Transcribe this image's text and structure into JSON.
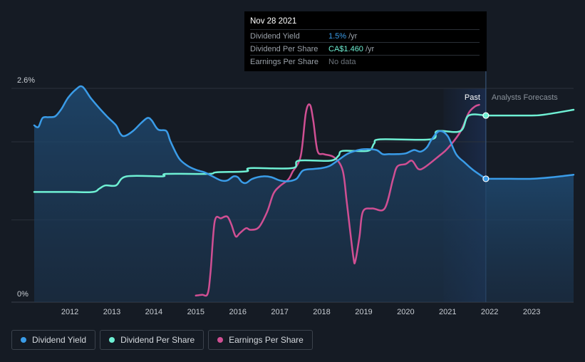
{
  "tooltip": {
    "date": "Nov 28 2021",
    "rows": [
      {
        "name": "Dividend Yield",
        "value": "1.5%",
        "unit": "/yr",
        "color": "#3a9ce8"
      },
      {
        "name": "Dividend Per Share",
        "value": "CA$1.460",
        "unit": "/yr",
        "color": "#6ff0d4"
      },
      {
        "name": "Earnings Per Share",
        "value": "No data",
        "unit": "",
        "color": "#6d747c"
      }
    ]
  },
  "legend": [
    {
      "label": "Dividend Yield",
      "color": "#3a9ce8"
    },
    {
      "label": "Dividend Per Share",
      "color": "#6ff0d4"
    },
    {
      "label": "Earnings Per Share",
      "color": "#d04f93"
    }
  ],
  "chart_data": {
    "type": "line",
    "y_tick_labels": [
      "2.6%",
      "0%"
    ],
    "ylim": [
      0,
      2.6
    ],
    "xlim": [
      2011.15,
      2024.0
    ],
    "x_ticks": [
      2012,
      2013,
      2014,
      2015,
      2016,
      2017,
      2018,
      2019,
      2020,
      2021,
      2022,
      2023
    ],
    "past_label": "Past",
    "forecast_label": "Analysts Forecasts",
    "divider_x": 2021.91,
    "colors": {
      "background": "#151b24",
      "past_region": "#1a2a48",
      "grid": "#2b323b"
    },
    "series": [
      {
        "name": "Dividend Yield",
        "color": "#3a9ce8",
        "fill": true,
        "points": [
          [
            2011.15,
            2.15
          ],
          [
            2011.25,
            2.13
          ],
          [
            2011.35,
            2.24
          ],
          [
            2011.5,
            2.25
          ],
          [
            2011.65,
            2.26
          ],
          [
            2011.8,
            2.35
          ],
          [
            2011.95,
            2.48
          ],
          [
            2012.15,
            2.59
          ],
          [
            2012.3,
            2.62
          ],
          [
            2012.5,
            2.48
          ],
          [
            2012.7,
            2.36
          ],
          [
            2012.9,
            2.25
          ],
          [
            2013.1,
            2.15
          ],
          [
            2013.2,
            2.05
          ],
          [
            2013.3,
            2.02
          ],
          [
            2013.5,
            2.08
          ],
          [
            2013.7,
            2.18
          ],
          [
            2013.85,
            2.24
          ],
          [
            2013.95,
            2.21
          ],
          [
            2014.1,
            2.1
          ],
          [
            2014.3,
            2.08
          ],
          [
            2014.4,
            1.95
          ],
          [
            2014.6,
            1.75
          ],
          [
            2014.8,
            1.66
          ],
          [
            2015.0,
            1.61
          ],
          [
            2015.2,
            1.58
          ],
          [
            2015.4,
            1.53
          ],
          [
            2015.6,
            1.48
          ],
          [
            2015.75,
            1.48
          ],
          [
            2015.9,
            1.53
          ],
          [
            2016.0,
            1.52
          ],
          [
            2016.1,
            1.46
          ],
          [
            2016.2,
            1.45
          ],
          [
            2016.35,
            1.5
          ],
          [
            2016.6,
            1.53
          ],
          [
            2016.8,
            1.52
          ],
          [
            2017.0,
            1.48
          ],
          [
            2017.2,
            1.47
          ],
          [
            2017.4,
            1.5
          ],
          [
            2017.55,
            1.6
          ],
          [
            2017.8,
            1.62
          ],
          [
            2018.0,
            1.63
          ],
          [
            2018.2,
            1.66
          ],
          [
            2018.4,
            1.73
          ],
          [
            2018.6,
            1.8
          ],
          [
            2018.8,
            1.84
          ],
          [
            2019.0,
            1.86
          ],
          [
            2019.3,
            1.85
          ],
          [
            2019.45,
            1.8
          ],
          [
            2019.6,
            1.8
          ],
          [
            2019.8,
            1.8
          ],
          [
            2020.0,
            1.81
          ],
          [
            2020.2,
            1.85
          ],
          [
            2020.35,
            1.83
          ],
          [
            2020.5,
            1.88
          ],
          [
            2020.62,
            1.98
          ],
          [
            2020.8,
            2.08
          ],
          [
            2021.0,
            2.02
          ],
          [
            2021.2,
            1.8
          ],
          [
            2021.4,
            1.7
          ],
          [
            2021.6,
            1.61
          ],
          [
            2021.91,
            1.5
          ]
        ]
      },
      {
        "name": "Dividend Yield Forecast",
        "color": "#3a9ce8",
        "fill": true,
        "points": [
          [
            2021.91,
            1.5
          ],
          [
            2022.5,
            1.5
          ],
          [
            2023.0,
            1.5
          ],
          [
            2023.5,
            1.52
          ],
          [
            2024.0,
            1.55
          ]
        ]
      },
      {
        "name": "Dividend Per Share",
        "color": "#6ff0d4",
        "fill": false,
        "points": [
          [
            2011.15,
            1.34
          ],
          [
            2012.0,
            1.34
          ],
          [
            2012.55,
            1.34
          ],
          [
            2012.7,
            1.38
          ],
          [
            2012.85,
            1.42
          ],
          [
            2013.1,
            1.42
          ],
          [
            2013.35,
            1.53
          ],
          [
            2014.2,
            1.53
          ],
          [
            2014.3,
            1.56
          ],
          [
            2015.3,
            1.56
          ],
          [
            2015.5,
            1.58
          ],
          [
            2016.2,
            1.59
          ],
          [
            2016.3,
            1.63
          ],
          [
            2017.3,
            1.63
          ],
          [
            2017.45,
            1.72
          ],
          [
            2018.2,
            1.72
          ],
          [
            2018.4,
            1.78
          ],
          [
            2018.5,
            1.84
          ],
          [
            2019.1,
            1.84
          ],
          [
            2019.25,
            1.93
          ],
          [
            2019.4,
            1.98
          ],
          [
            2020.6,
            1.98
          ],
          [
            2020.75,
            2.08
          ],
          [
            2021.3,
            2.08
          ],
          [
            2021.5,
            2.27
          ],
          [
            2021.91,
            2.27
          ]
        ]
      },
      {
        "name": "Dividend Per Share Forecast",
        "color": "#6ff0d4",
        "fill": false,
        "points": [
          [
            2021.91,
            2.27
          ],
          [
            2022.5,
            2.27
          ],
          [
            2023.0,
            2.27
          ],
          [
            2023.3,
            2.28
          ],
          [
            2024.0,
            2.34
          ]
        ]
      },
      {
        "name": "Earnings Per Share",
        "color": "#d04f93",
        "fill": false,
        "points": [
          [
            2015.0,
            0.08
          ],
          [
            2015.15,
            0.09
          ],
          [
            2015.28,
            0.1
          ],
          [
            2015.35,
            0.36
          ],
          [
            2015.45,
            0.98
          ],
          [
            2015.6,
            1.02
          ],
          [
            2015.75,
            1.04
          ],
          [
            2015.85,
            0.94
          ],
          [
            2015.95,
            0.8
          ],
          [
            2016.05,
            0.84
          ],
          [
            2016.2,
            0.9
          ],
          [
            2016.3,
            0.88
          ],
          [
            2016.5,
            0.91
          ],
          [
            2016.7,
            1.1
          ],
          [
            2016.85,
            1.32
          ],
          [
            2017.0,
            1.41
          ],
          [
            2017.2,
            1.49
          ],
          [
            2017.3,
            1.58
          ],
          [
            2017.5,
            1.78
          ],
          [
            2017.62,
            2.3
          ],
          [
            2017.72,
            2.4
          ],
          [
            2017.8,
            2.2
          ],
          [
            2017.9,
            1.84
          ],
          [
            2018.05,
            1.8
          ],
          [
            2018.3,
            1.76
          ],
          [
            2018.5,
            1.6
          ],
          [
            2018.6,
            1.2
          ],
          [
            2018.75,
            0.56
          ],
          [
            2018.8,
            0.5
          ],
          [
            2018.9,
            0.8
          ],
          [
            2018.98,
            1.1
          ],
          [
            2019.2,
            1.14
          ],
          [
            2019.5,
            1.14
          ],
          [
            2019.7,
            1.5
          ],
          [
            2019.8,
            1.65
          ],
          [
            2020.0,
            1.68
          ],
          [
            2020.15,
            1.72
          ],
          [
            2020.3,
            1.62
          ],
          [
            2020.45,
            1.64
          ],
          [
            2020.8,
            1.78
          ],
          [
            2021.0,
            1.87
          ],
          [
            2021.3,
            2.07
          ],
          [
            2021.5,
            2.3
          ],
          [
            2021.65,
            2.38
          ],
          [
            2021.75,
            2.4
          ]
        ]
      }
    ],
    "markers": [
      {
        "x": 2021.91,
        "y": 2.27,
        "color": "#6ff0d4"
      },
      {
        "x": 2021.91,
        "y": 1.5,
        "color": "#3a9ce8"
      }
    ]
  }
}
